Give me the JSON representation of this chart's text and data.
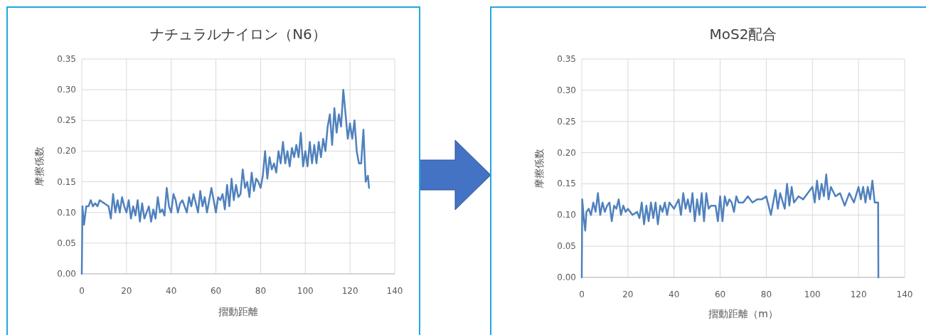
{
  "chart_data": [
    {
      "type": "line",
      "title": "ナチュラルナイロン（N6）",
      "xlabel": "摺動距離",
      "ylabel": "摩擦係数",
      "grid": true,
      "xlim": [
        0,
        140
      ],
      "ylim": [
        0,
        0.35
      ],
      "xticks": [
        0,
        20,
        40,
        60,
        80,
        100,
        120,
        140
      ],
      "yticks": [
        {
          "value": 0,
          "label": "0.00"
        },
        {
          "value": 0.05,
          "label": "0.05"
        },
        {
          "value": 0.1,
          "label": "0.10"
        },
        {
          "value": 0.15,
          "label": "0.15"
        },
        {
          "value": 0.2,
          "label": "0.20"
        },
        {
          "value": 0.25,
          "label": "0.25"
        },
        {
          "value": 0.3,
          "label": "0.30"
        },
        {
          "value": 0.35,
          "label": "0.35"
        }
      ],
      "x": [
        0,
        0.3,
        1,
        2,
        3,
        4,
        5,
        6,
        7,
        8,
        10,
        12,
        13,
        14,
        15,
        16,
        17,
        18,
        19,
        20,
        21,
        22,
        23,
        24,
        25,
        26,
        27,
        28,
        30,
        31,
        32,
        33,
        34,
        35,
        36,
        37,
        38,
        39,
        40,
        41,
        42,
        43,
        44,
        45,
        46,
        47,
        48,
        49,
        50,
        51,
        52,
        53,
        54,
        55,
        56,
        57,
        58,
        59,
        60,
        61,
        62,
        63,
        64,
        65,
        66,
        67,
        68,
        69,
        70,
        71,
        72,
        73,
        74,
        75,
        76,
        77,
        78,
        79,
        80,
        81,
        82,
        83,
        84,
        85,
        86,
        87,
        88,
        89,
        90,
        91,
        92,
        93,
        94,
        95,
        96,
        97,
        98,
        99,
        100,
        101,
        102,
        103,
        104,
        105,
        106,
        107,
        108,
        109,
        110,
        111,
        112,
        113,
        114,
        115,
        116,
        117,
        118,
        119,
        120,
        121,
        122,
        123,
        124,
        125,
        126,
        127,
        128,
        128.5
      ],
      "series": [
        {
          "color": "#4f81bd",
          "values": [
            0,
            0.11,
            0.08,
            0.11,
            0.11,
            0.12,
            0.11,
            0.115,
            0.11,
            0.12,
            0.115,
            0.11,
            0.09,
            0.13,
            0.1,
            0.12,
            0.1,
            0.125,
            0.11,
            0.1,
            0.12,
            0.09,
            0.11,
            0.095,
            0.12,
            0.085,
            0.115,
            0.09,
            0.11,
            0.085,
            0.105,
            0.09,
            0.125,
            0.1,
            0.105,
            0.095,
            0.14,
            0.11,
            0.1,
            0.13,
            0.12,
            0.1,
            0.115,
            0.12,
            0.11,
            0.1,
            0.125,
            0.11,
            0.13,
            0.115,
            0.1,
            0.135,
            0.11,
            0.125,
            0.1,
            0.12,
            0.14,
            0.12,
            0.1,
            0.125,
            0.12,
            0.13,
            0.105,
            0.145,
            0.11,
            0.155,
            0.12,
            0.145,
            0.125,
            0.13,
            0.17,
            0.14,
            0.15,
            0.125,
            0.165,
            0.135,
            0.155,
            0.15,
            0.14,
            0.16,
            0.2,
            0.155,
            0.19,
            0.17,
            0.18,
            0.165,
            0.2,
            0.18,
            0.215,
            0.18,
            0.2,
            0.175,
            0.205,
            0.19,
            0.21,
            0.19,
            0.23,
            0.175,
            0.2,
            0.175,
            0.215,
            0.18,
            0.21,
            0.18,
            0.215,
            0.19,
            0.22,
            0.2,
            0.24,
            0.26,
            0.21,
            0.27,
            0.23,
            0.26,
            0.24,
            0.3,
            0.26,
            0.22,
            0.245,
            0.22,
            0.25,
            0.2,
            0.18,
            0.18,
            0.235,
            0.15,
            0.16,
            0.14
          ]
        }
      ]
    },
    {
      "type": "line",
      "title": "MoS2配合",
      "xlabel": "摺動距離（m）",
      "ylabel": "摩擦係数",
      "grid": true,
      "xlim": [
        0,
        140
      ],
      "ylim": [
        0,
        0.35
      ],
      "xticks": [
        0,
        20,
        40,
        60,
        80,
        100,
        120,
        140
      ],
      "yticks": [
        {
          "value": 0,
          "label": "0.00"
        },
        {
          "value": 0.05,
          "label": "0.05"
        },
        {
          "value": 0.1,
          "label": "0.10"
        },
        {
          "value": 0.15,
          "label": "0.15"
        },
        {
          "value": 0.2,
          "label": "0.20"
        },
        {
          "value": 0.25,
          "label": "0.25"
        },
        {
          "value": 0.3,
          "label": "0.30"
        },
        {
          "value": 0.35,
          "label": "0.35"
        }
      ],
      "x": [
        0,
        0.2,
        1,
        1.5,
        2,
        3,
        4,
        5,
        6,
        7,
        8,
        9,
        10,
        11,
        12,
        13,
        14,
        15,
        16,
        17,
        18,
        19,
        20,
        22,
        24,
        25,
        26,
        27,
        28,
        29,
        30,
        31,
        32,
        33,
        34,
        35,
        36,
        37,
        38,
        40,
        42,
        43,
        44,
        45,
        46,
        47,
        48,
        49,
        50,
        51,
        52,
        53,
        54,
        55,
        56,
        58,
        59,
        60,
        61,
        62,
        63,
        64,
        65,
        66,
        67,
        68,
        70,
        72,
        74,
        76,
        78,
        80,
        82,
        84,
        85,
        86,
        88,
        89,
        90,
        91,
        92,
        94,
        96,
        98,
        100,
        101,
        102,
        103,
        104,
        105,
        106,
        107,
        108,
        110,
        112,
        114,
        116,
        118,
        120,
        121,
        122,
        123,
        124,
        125,
        126,
        127,
        128,
        128.5,
        128.6
      ],
      "series": [
        {
          "color": "#4f81bd",
          "values": [
            0,
            0.125,
            0.09,
            0.075,
            0.105,
            0.11,
            0.1,
            0.12,
            0.105,
            0.135,
            0.1,
            0.12,
            0.105,
            0.115,
            0.12,
            0.09,
            0.115,
            0.11,
            0.125,
            0.1,
            0.115,
            0.105,
            0.11,
            0.1,
            0.105,
            0.095,
            0.12,
            0.085,
            0.115,
            0.09,
            0.12,
            0.095,
            0.12,
            0.085,
            0.115,
            0.105,
            0.12,
            0.1,
            0.12,
            0.11,
            0.125,
            0.1,
            0.135,
            0.11,
            0.125,
            0.105,
            0.135,
            0.09,
            0.125,
            0.1,
            0.135,
            0.09,
            0.135,
            0.11,
            0.115,
            0.115,
            0.09,
            0.13,
            0.09,
            0.13,
            0.115,
            0.125,
            0.12,
            0.105,
            0.13,
            0.12,
            0.12,
            0.13,
            0.12,
            0.125,
            0.125,
            0.13,
            0.1,
            0.14,
            0.11,
            0.135,
            0.11,
            0.15,
            0.115,
            0.145,
            0.12,
            0.13,
            0.125,
            0.135,
            0.145,
            0.12,
            0.155,
            0.125,
            0.15,
            0.13,
            0.165,
            0.125,
            0.145,
            0.13,
            0.135,
            0.115,
            0.135,
            0.12,
            0.145,
            0.125,
            0.145,
            0.12,
            0.145,
            0.125,
            0.155,
            0.12,
            0.12,
            0.12,
            0
          ]
        }
      ]
    }
  ]
}
